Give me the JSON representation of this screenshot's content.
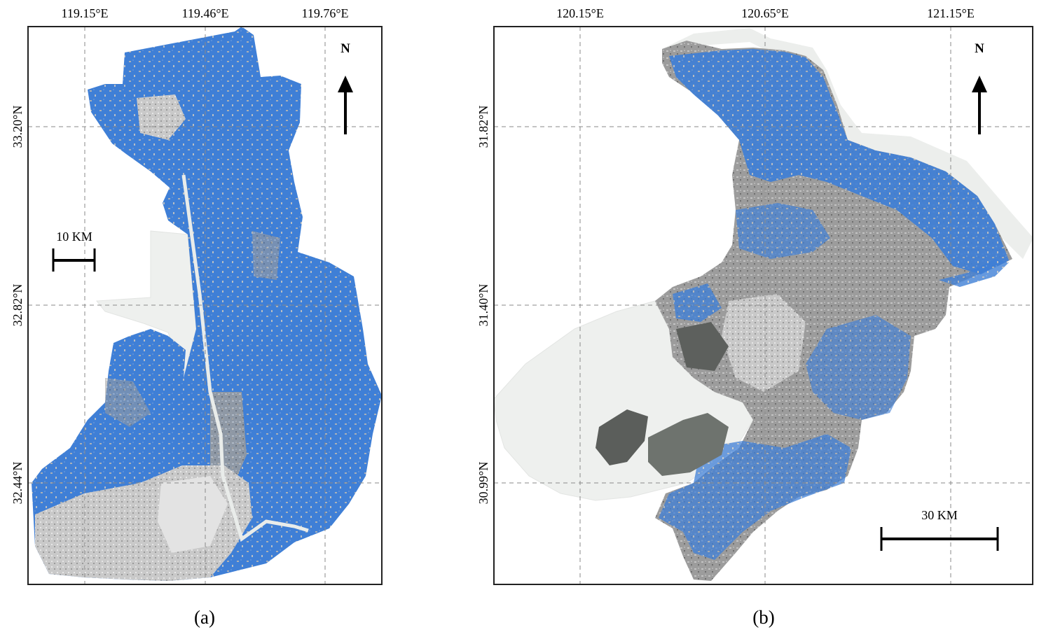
{
  "panel_a": {
    "caption": "(a)",
    "lon_ticks": [
      "119.15°E",
      "119.46°E",
      "119.76°E"
    ],
    "lat_ticks": [
      "33.20°N",
      "32.82°N",
      "32.44°N"
    ],
    "north_label": "N",
    "scale_label": "10 KM"
  },
  "panel_b": {
    "caption": "(b)",
    "lon_ticks": [
      "120.15°E",
      "120.65°E",
      "121.15°E"
    ],
    "lat_ticks": [
      "31.82°N",
      "31.40°N",
      "30.99°N"
    ],
    "north_label": "N",
    "scale_label": "30 KM"
  },
  "colors": {
    "paddy_field": "#3f7fd6",
    "other_land": "#9a9a9a",
    "built_up": "#cfcfcf",
    "water": "#eceeec",
    "dense_vegetation": "#5f6660"
  }
}
